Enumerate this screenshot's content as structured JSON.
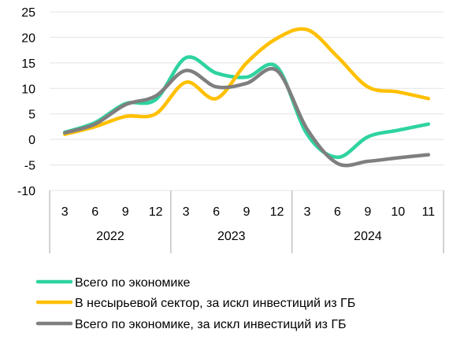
{
  "chart_data": {
    "type": "line",
    "title": "",
    "xlabel": "",
    "ylabel": "",
    "ylim": [
      -10,
      25
    ],
    "yticks": [
      -10,
      -5,
      0,
      5,
      10,
      15,
      20,
      25
    ],
    "grid": true,
    "legend_position": "bottom",
    "years": [
      {
        "label": "2022",
        "months": [
          "3",
          "6",
          "9",
          "12"
        ]
      },
      {
        "label": "2023",
        "months": [
          "3",
          "6",
          "9",
          "12"
        ]
      },
      {
        "label": "2024",
        "months": [
          "3",
          "6",
          "9",
          "10",
          "11"
        ]
      }
    ],
    "series": [
      {
        "name": "Всего по экономике",
        "color": "#2ed3a0",
        "values": [
          1.4,
          3.3,
          7.0,
          7.8,
          16.0,
          13.0,
          12.2,
          14.2,
          1.0,
          -3.5,
          0.5,
          1.8,
          3.0
        ]
      },
      {
        "name": "В несырьевой сектор, за искл инвестиций из ГБ",
        "color": "#ffc000",
        "values": [
          1.0,
          2.5,
          4.5,
          5.0,
          11.2,
          8.0,
          15.0,
          19.8,
          21.5,
          16.2,
          10.3,
          9.3,
          8.0
        ]
      },
      {
        "name": "Всего по экономике, за искл инвестиций из ГБ",
        "color": "#7f7f7f",
        "values": [
          1.3,
          3.0,
          6.8,
          8.5,
          13.5,
          10.3,
          11.0,
          13.5,
          2.0,
          -4.7,
          -4.3,
          -3.6,
          -3.0
        ]
      }
    ]
  }
}
